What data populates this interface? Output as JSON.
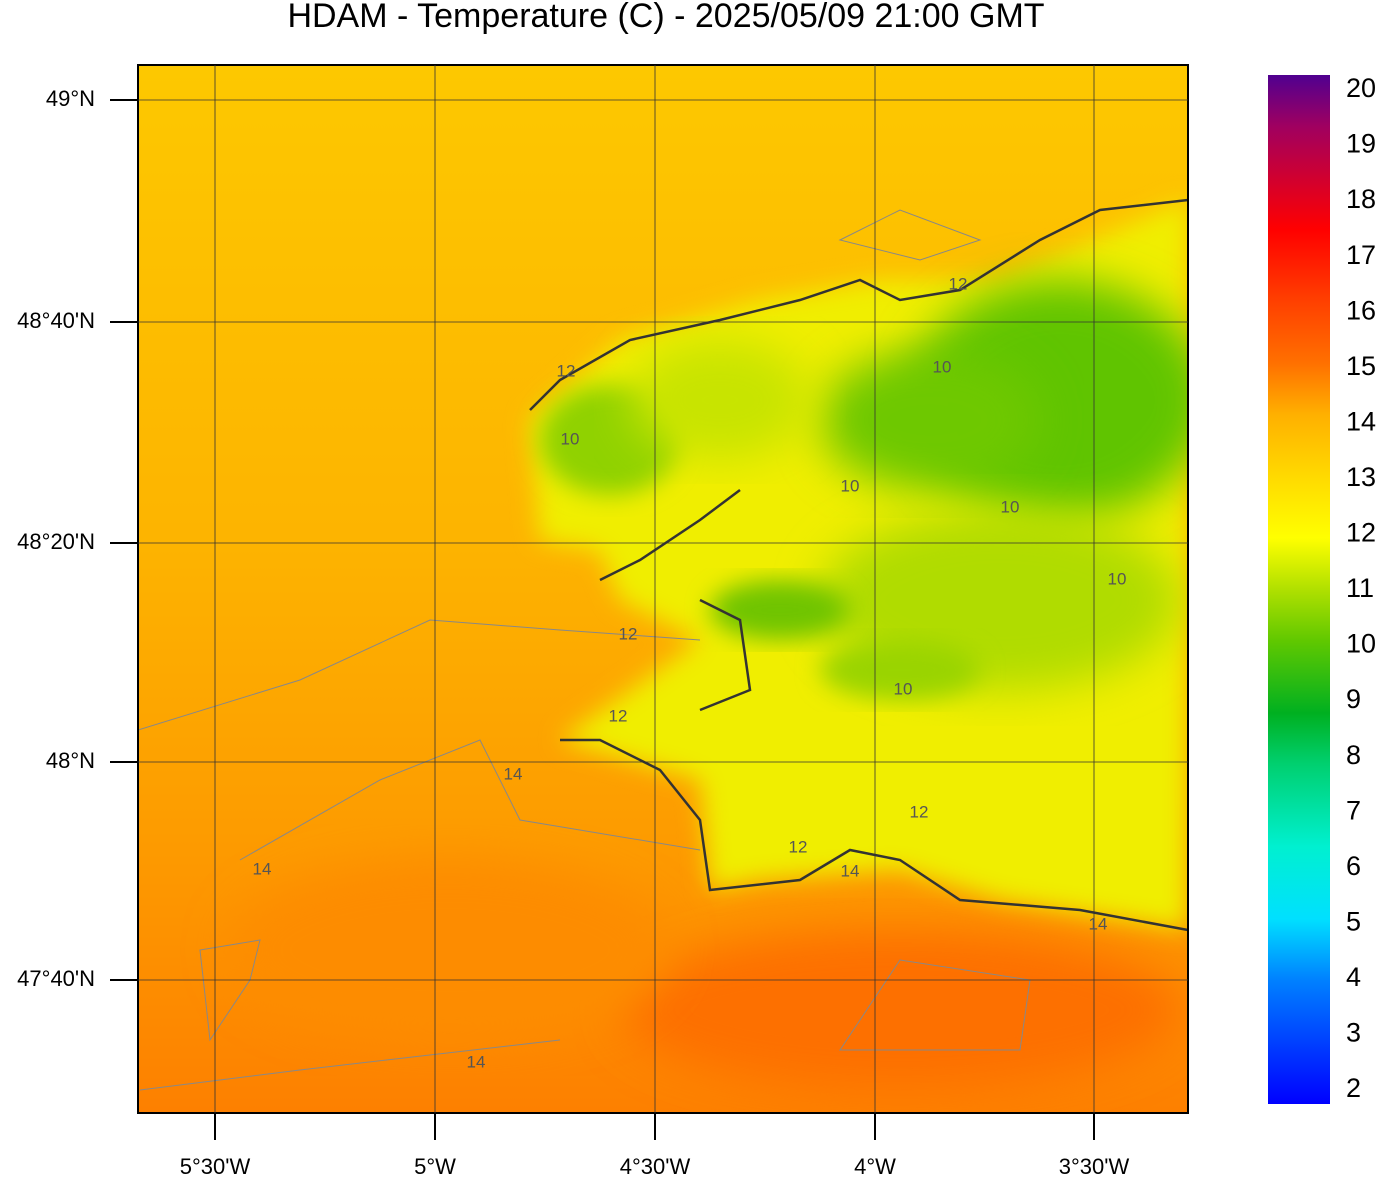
{
  "title": "HDAM - Temperature (C)  -  2025/05/09  21:00 GMT",
  "lat_labels": [
    "49°N",
    "48°40'N",
    "48°20'N",
    "48°N",
    "47°40'N"
  ],
  "lon_labels": [
    "5°30'W",
    "5°W",
    "4°30'W",
    "4°W",
    "3°30'W"
  ],
  "colorbar": {
    "ticks": [
      2,
      3,
      4,
      5,
      6,
      7,
      8,
      9,
      10,
      11,
      12,
      13,
      14,
      15,
      16,
      17,
      18,
      19,
      20
    ]
  },
  "contour_labels": [
    "12",
    "10",
    "10",
    "10",
    "12",
    "10",
    "10",
    "10",
    "12",
    "14",
    "14",
    "14",
    "12",
    "14",
    "14",
    "12",
    "12"
  ]
}
